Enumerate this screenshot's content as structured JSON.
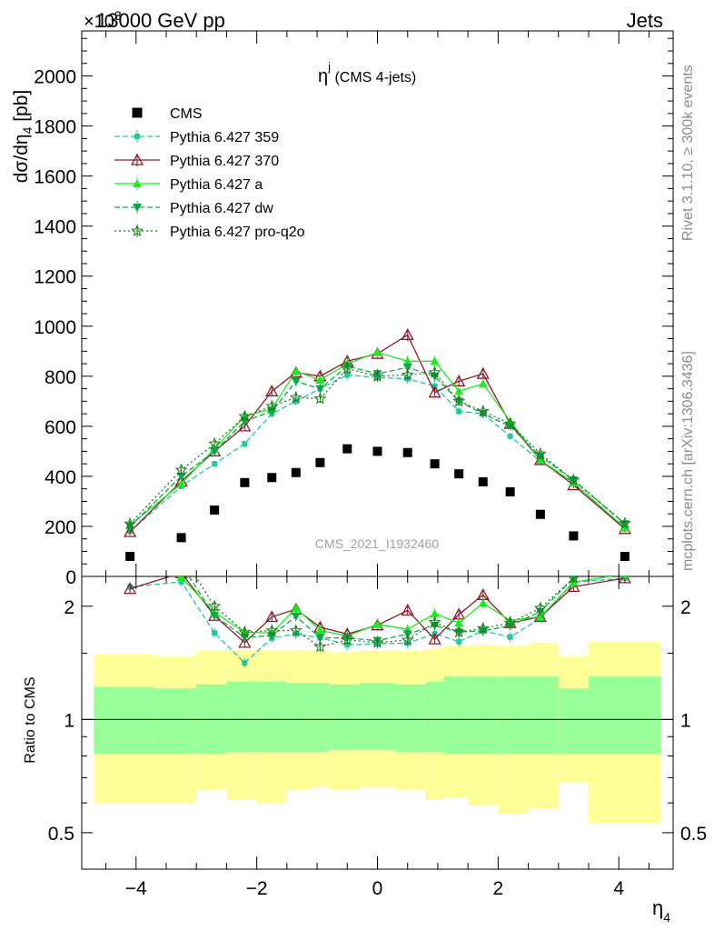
{
  "header": {
    "left": "13000 GeV pp",
    "right": "Jets",
    "exp_label": "×10",
    "exp_power": "3"
  },
  "side_labels": {
    "top": "Rivet 3.1.10, ≥ 300k events",
    "bottom": "mcplots.cern.ch [arXiv:1306.3436]"
  },
  "main": {
    "title_main": "η",
    "title_sup": "j",
    "title_rest": " (CMS 4-jets)",
    "ylabel_prefix": "dσ/dη",
    "ylabel_sub": "4",
    "ylabel_suffix": " [pb]",
    "watermark": "CMS_2021_I1932460"
  },
  "ratio": {
    "ylabel": "Ratio to CMS"
  },
  "xlabel": "η",
  "xlabel_sub": "4",
  "colors": {
    "cms": "#000000",
    "p359": "#1ec9a0",
    "p370": "#8b1a2b",
    "pa": "#1aee1a",
    "pdw": "#0aa84a",
    "pq2o": "#1a7a1a",
    "band_inner": "#99ff99",
    "band_outer": "#ffff99"
  },
  "chart_data": {
    "type": "scatter",
    "x_edges": [
      -4.7,
      -3.7,
      -3.0,
      -2.5,
      -2.0,
      -1.5,
      -1.1,
      -0.8,
      -0.3,
      0.3,
      0.8,
      1.1,
      1.5,
      2.0,
      2.5,
      3.0,
      3.5,
      4.7
    ],
    "x_ticks": [
      -4,
      -2,
      0,
      2,
      4
    ],
    "xlim": [
      -4.9,
      4.9
    ],
    "ylim": [
      0,
      2180
    ],
    "y_ticks": [
      0,
      200,
      400,
      600,
      800,
      1000,
      1200,
      1400,
      1600,
      1800,
      2000
    ],
    "ratio_ylim_log": [
      0.4,
      2.4
    ],
    "ratio_y_ticks": [
      0.5,
      1,
      2
    ],
    "x": [
      -4.1,
      -3.25,
      -2.7,
      -2.2,
      -1.75,
      -1.35,
      -0.95,
      -0.5,
      0.0,
      0.5,
      0.95,
      1.35,
      1.75,
      2.2,
      2.7,
      3.25,
      4.1
    ],
    "cms": [
      80,
      155,
      265,
      375,
      395,
      415,
      455,
      510,
      500,
      495,
      450,
      410,
      378,
      338,
      248,
      162,
      80
    ],
    "band_inner_lo": [
      0.81,
      0.81,
      0.81,
      0.82,
      0.82,
      0.82,
      0.82,
      0.83,
      0.83,
      0.82,
      0.82,
      0.81,
      0.81,
      0.81,
      0.81,
      0.81,
      0.81
    ],
    "band_inner_hi": [
      1.22,
      1.21,
      1.24,
      1.26,
      1.26,
      1.25,
      1.25,
      1.24,
      1.25,
      1.24,
      1.26,
      1.3,
      1.3,
      1.3,
      1.3,
      1.21,
      1.3
    ],
    "band_outer_lo": [
      0.6,
      0.6,
      0.65,
      0.61,
      0.6,
      0.65,
      0.66,
      0.65,
      0.66,
      0.65,
      0.61,
      0.62,
      0.59,
      0.56,
      0.58,
      0.68,
      0.53
    ],
    "band_outer_hi": [
      1.49,
      1.47,
      1.52,
      1.53,
      1.53,
      1.53,
      1.52,
      1.51,
      1.52,
      1.52,
      1.54,
      1.57,
      1.58,
      1.57,
      1.6,
      1.47,
      1.61
    ],
    "series": [
      {
        "name": "CMS",
        "key": "cms",
        "marker": "square",
        "dash": "none",
        "values": [
          80,
          155,
          265,
          375,
          395,
          415,
          455,
          510,
          500,
          495,
          450,
          410,
          378,
          338,
          248,
          162,
          80
        ]
      },
      {
        "name": "Pythia 6.427 359",
        "key": "p359",
        "marker": "smallsquare",
        "dash": "6,3",
        "values": [
          180,
          360,
          450,
          530,
          650,
          700,
          750,
          805,
          795,
          790,
          760,
          660,
          650,
          560,
          460,
          375,
          190
        ]
      },
      {
        "name": "Pythia 6.427 370",
        "key": "p370",
        "marker": "opentriangle",
        "dash": "none",
        "values": [
          178,
          380,
          500,
          600,
          740,
          815,
          800,
          860,
          890,
          965,
          735,
          780,
          810,
          610,
          465,
          365,
          190
        ]
      },
      {
        "name": "Pythia 6.427 a",
        "key": "pa",
        "marker": "triangle",
        "dash": "none",
        "values": [
          205,
          370,
          510,
          640,
          670,
          820,
          785,
          850,
          895,
          860,
          860,
          740,
          770,
          620,
          465,
          375,
          195
        ]
      },
      {
        "name": "Pythia 6.427 dw",
        "key": "pdw",
        "marker": "triangledown",
        "dash": "6,3",
        "values": [
          200,
          400,
          500,
          620,
          660,
          780,
          750,
          840,
          810,
          835,
          800,
          700,
          650,
          600,
          480,
          385,
          210
        ]
      },
      {
        "name": "Pythia 6.427 pro-q2o",
        "key": "pq2o",
        "marker": "star",
        "dash": "2,3",
        "values": [
          210,
          425,
          530,
          640,
          680,
          715,
          710,
          830,
          800,
          805,
          815,
          700,
          660,
          610,
          490,
          385,
          212
        ]
      }
    ],
    "xlabel": "η4",
    "ylabel": "dσ/dη4 [pb]",
    "ratio_ylabel": "Ratio to CMS",
    "title": "ηj (CMS 4-jets)",
    "legend": "top-left"
  }
}
